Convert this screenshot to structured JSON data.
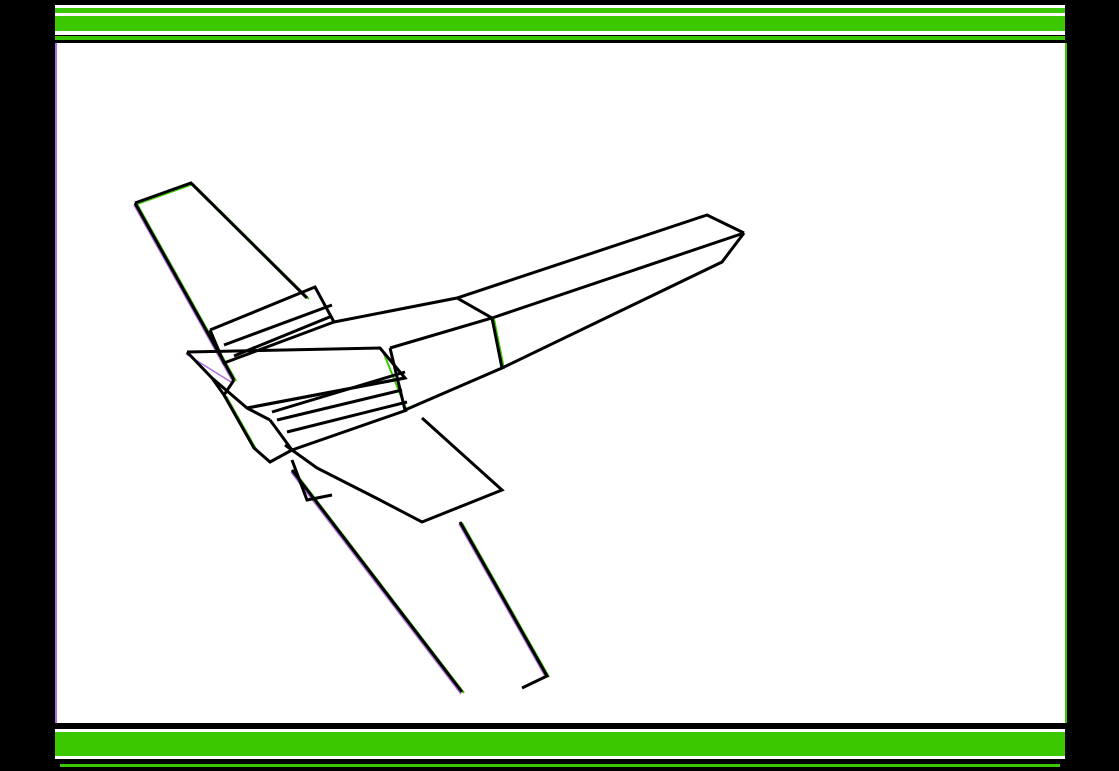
{
  "model": {
    "object": "wireframe-aircraft"
  },
  "colors": {
    "background": "#000000",
    "viewport": "#ffffff",
    "bar": "#3cc800",
    "bar_highlight": "#ffffff",
    "wireframe": "#000000",
    "fringe_green": "#3cc800",
    "fringe_purple": "#b070e0"
  }
}
